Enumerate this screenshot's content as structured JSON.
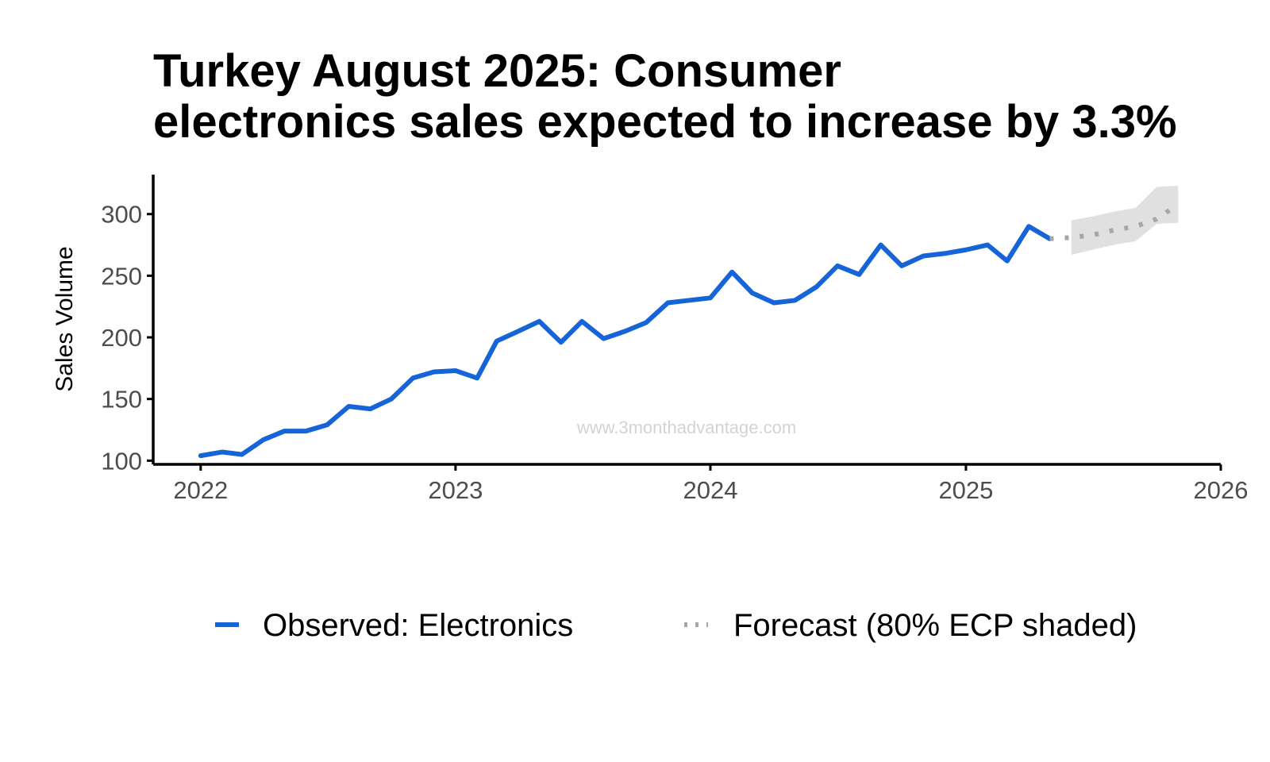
{
  "chart_data": {
    "type": "line",
    "title_lines": [
      "Turkey August 2025: Consumer",
      "electronics sales expected to increase by 3.3%"
    ],
    "xlabel": "",
    "ylabel": "Sales Volume",
    "x_ticks": [
      "2022",
      "2023",
      "2024",
      "2025",
      "2026"
    ],
    "y_ticks": [
      "100",
      "150",
      "200",
      "250",
      "300"
    ],
    "xlim": [
      "2021-10-25",
      "2026-01-01"
    ],
    "ylim": [
      97,
      332
    ],
    "grid": false,
    "legend_position": "bottom",
    "watermark": "www.3monthadvantage.com",
    "colors": {
      "observed": "#1565d8",
      "forecast": "#a6a6a6",
      "band": "#e0e0e0"
    },
    "series": [
      {
        "name": "Observed: Electronics",
        "style": "solid",
        "points": [
          [
            "2022-01-01",
            104
          ],
          [
            "2022-02-01",
            107
          ],
          [
            "2022-03-01",
            105
          ],
          [
            "2022-04-01",
            117
          ],
          [
            "2022-05-01",
            124
          ],
          [
            "2022-06-01",
            124
          ],
          [
            "2022-07-01",
            129
          ],
          [
            "2022-08-01",
            144
          ],
          [
            "2022-09-01",
            142
          ],
          [
            "2022-10-01",
            150
          ],
          [
            "2022-11-01",
            167
          ],
          [
            "2022-12-01",
            172
          ],
          [
            "2023-01-01",
            173
          ],
          [
            "2023-02-01",
            167
          ],
          [
            "2023-03-01",
            197
          ],
          [
            "2023-04-01",
            205
          ],
          [
            "2023-05-01",
            213
          ],
          [
            "2023-06-01",
            196
          ],
          [
            "2023-07-01",
            213
          ],
          [
            "2023-08-01",
            199
          ],
          [
            "2023-09-01",
            205
          ],
          [
            "2023-10-01",
            212
          ],
          [
            "2023-11-01",
            228
          ],
          [
            "2023-12-01",
            230
          ],
          [
            "2024-01-01",
            232
          ],
          [
            "2024-02-01",
            253
          ],
          [
            "2024-03-01",
            236
          ],
          [
            "2024-04-01",
            228
          ],
          [
            "2024-05-01",
            230
          ],
          [
            "2024-06-01",
            241
          ],
          [
            "2024-07-01",
            258
          ],
          [
            "2024-08-01",
            251
          ],
          [
            "2024-09-01",
            275
          ],
          [
            "2024-10-01",
            258
          ],
          [
            "2024-11-01",
            266
          ],
          [
            "2024-12-01",
            268
          ],
          [
            "2025-01-01",
            271
          ],
          [
            "2025-02-01",
            275
          ],
          [
            "2025-03-01",
            262
          ],
          [
            "2025-04-01",
            290
          ],
          [
            "2025-05-01",
            280
          ]
        ]
      },
      {
        "name": "Forecast (80% ECP shaded)",
        "style": "dotted",
        "points": [
          [
            "2025-05-01",
            280
          ],
          [
            "2025-06-01",
            281
          ],
          [
            "2025-07-01",
            283
          ],
          [
            "2025-08-01",
            287
          ],
          [
            "2025-09-01",
            290
          ],
          [
            "2025-10-01",
            296
          ],
          [
            "2025-11-01",
            308
          ]
        ],
        "band": [
          [
            "2025-06-01",
            267,
            295
          ],
          [
            "2025-07-01",
            271,
            298
          ],
          [
            "2025-08-01",
            275,
            302
          ],
          [
            "2025-09-01",
            278,
            305
          ],
          [
            "2025-10-01",
            292,
            322
          ],
          [
            "2025-11-01",
            293,
            323
          ]
        ]
      }
    ]
  }
}
